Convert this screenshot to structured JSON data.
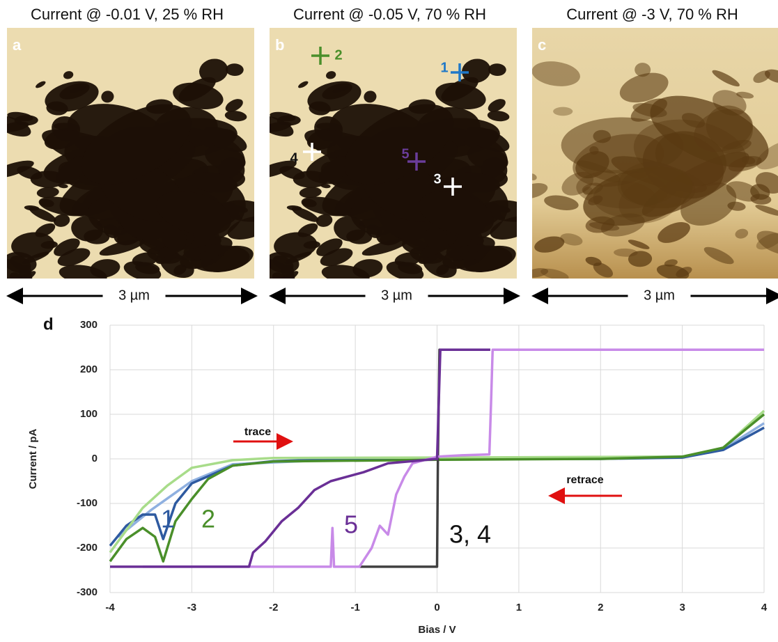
{
  "panels": [
    {
      "title": "Current @ -0.01 V, 25 % RH",
      "label": "a",
      "scale": "3 µm"
    },
    {
      "title": "Current @ -0.05 V, 70 % RH",
      "label": "b",
      "scale": "3 µm",
      "markers": [
        {
          "label": "1",
          "color": "#1f78c8"
        },
        {
          "label": "2",
          "color": "#4a8f2a"
        },
        {
          "label": "3",
          "color": "#ffffff"
        },
        {
          "label": "4",
          "color": "#ffffff"
        },
        {
          "label": "5",
          "color": "#6a3d9a"
        }
      ]
    },
    {
      "title": "Current @ -3 V, 70 % RH",
      "label": "c",
      "scale": "3 µm"
    }
  ],
  "chart_data": {
    "type": "line",
    "panel_label": "d",
    "x_label": "Bias / V",
    "y_label": "Current / pA",
    "xlim": [
      -4,
      4
    ],
    "xticks": [
      -4,
      -3,
      -2,
      -1,
      0,
      1,
      2,
      3,
      4
    ],
    "ylim": [
      -300,
      300
    ],
    "yticks": [
      -300,
      -200,
      -100,
      0,
      100,
      200,
      300
    ],
    "grid": true,
    "series": [
      {
        "color": "#8fb0e0",
        "x": [
          -3.9,
          -3.5,
          -3.0,
          -2.5,
          -1,
          3,
          3.5,
          4
        ],
        "values": [
          -175,
          -115,
          -50,
          -12,
          0,
          5,
          22,
          80
        ]
      },
      {
        "name": "1",
        "color": "#2e5aa0",
        "x": [
          -4,
          -3.8,
          -3.6,
          -3.45,
          -3.35,
          -3.2,
          -3,
          -2.5,
          -2,
          -1,
          0,
          1,
          2,
          3,
          3.5,
          4
        ],
        "values": [
          -195,
          -150,
          -125,
          -125,
          -180,
          -100,
          -55,
          -15,
          -5,
          0,
          0,
          0,
          0,
          3,
          20,
          70
        ]
      },
      {
        "color": "#a8dc8a",
        "x": [
          -4,
          -3.6,
          -3.3,
          -3,
          -2.5,
          -2,
          0,
          3,
          3.5,
          4
        ],
        "values": [
          -210,
          -110,
          -60,
          -20,
          -3,
          2,
          3,
          5,
          25,
          108
        ]
      },
      {
        "name": "2",
        "color": "#4a8f2a",
        "x": [
          -4,
          -3.8,
          -3.6,
          -3.45,
          -3.35,
          -3.2,
          -3,
          -2.8,
          -2.5,
          -2,
          0,
          2,
          3,
          3.5,
          4
        ],
        "values": [
          -230,
          -180,
          -155,
          -175,
          -230,
          -140,
          -90,
          -45,
          -15,
          -6,
          -2,
          0,
          5,
          25,
          100
        ]
      },
      {
        "name": "3, 4",
        "color": "#404040",
        "x": [
          -0.95,
          0,
          0.01,
          0.03,
          0.65
        ],
        "values": [
          -242,
          -242,
          0,
          245,
          245
        ]
      },
      {
        "color": "#c88ae8",
        "x": [
          -3.6,
          -1.3,
          -1.28,
          -1.26,
          -0.95,
          -0.8,
          -0.7,
          -0.6,
          -0.5,
          -0.4,
          -0.3,
          0,
          0.3,
          0.64,
          0.66,
          0.68,
          4
        ],
        "values": [
          -242,
          -242,
          -155,
          -242,
          -242,
          -200,
          -150,
          -170,
          -80,
          -40,
          -10,
          5,
          8,
          10,
          125,
          245,
          245
        ]
      },
      {
        "name": "5",
        "color": "#6a2f96",
        "x": [
          -4,
          -2.3,
          -2.25,
          -2.1,
          -1.9,
          -1.7,
          -1.5,
          -1.3,
          -1.1,
          -0.9,
          -0.6,
          -0.3,
          0,
          0.02,
          0.04,
          0.65
        ],
        "values": [
          -242,
          -242,
          -210,
          -185,
          -140,
          -110,
          -70,
          -50,
          -40,
          -30,
          -10,
          -5,
          0,
          120,
          245,
          245
        ]
      }
    ],
    "annotations": [
      {
        "text": "trace",
        "color": "#e01010"
      },
      {
        "text": "retrace",
        "color": "#e01010"
      }
    ]
  }
}
